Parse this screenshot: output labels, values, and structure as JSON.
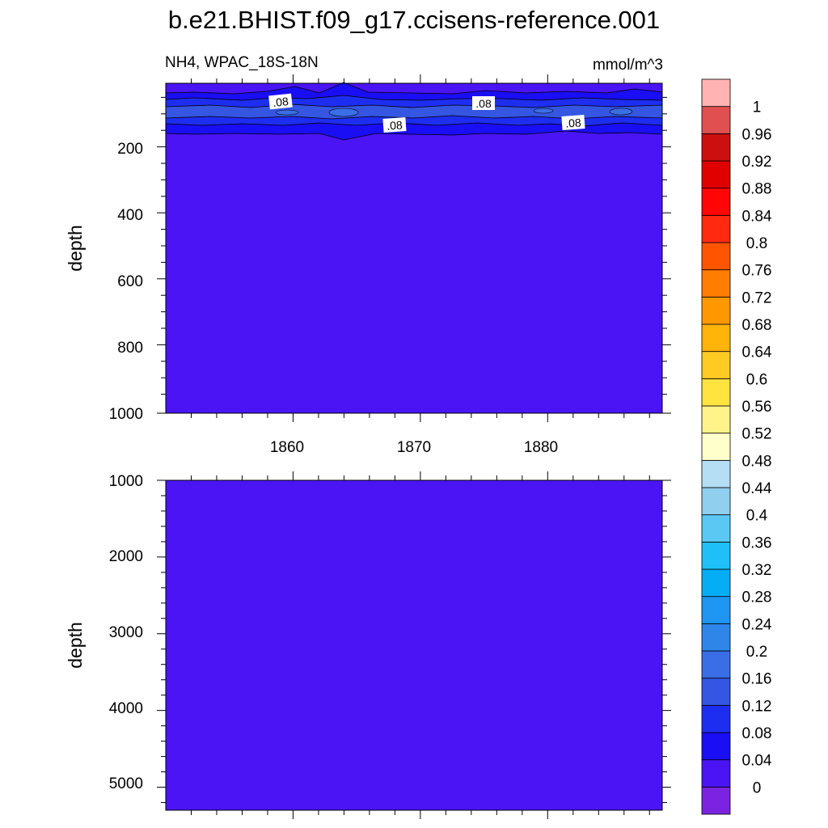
{
  "chart_data": {
    "type": "heatmap",
    "title": "b.e21.BHIST.f09_g17.ccisens-reference.001",
    "variable_label": "NH4, WPAC_18S-18N",
    "units_label": "mmol/m^3",
    "x_ticks": [
      "1860",
      "1870",
      "1880"
    ],
    "x_range": [
      1850,
      1889
    ],
    "colorbar": {
      "labels": [
        "0",
        "0.04",
        "0.08",
        "0.12",
        "0.16",
        "0.2",
        "0.24",
        "0.28",
        "0.32",
        "0.36",
        "0.4",
        "0.44",
        "0.48",
        "0.52",
        "0.56",
        "0.6",
        "0.64",
        "0.68",
        "0.72",
        "0.76",
        "0.8",
        "0.84",
        "0.88",
        "0.92",
        "0.96",
        "1"
      ],
      "colors": [
        "#7b23e0",
        "#4a14f5",
        "#1a0ef5",
        "#1e2ef0",
        "#3555e3",
        "#3a6ee6",
        "#2f86e8",
        "#1e96f2",
        "#05adf5",
        "#1ec0f7",
        "#5ac8f3",
        "#90cfee",
        "#b5def5",
        "#ffffcc",
        "#fff38a",
        "#ffe440",
        "#ffca22",
        "#ffb40a",
        "#ff9800",
        "#ff7d00",
        "#ff5500",
        "#ff2a10",
        "#ff0505",
        "#e00000",
        "#cc1010",
        "#e05050",
        "#ffb3b3"
      ]
    },
    "panels": [
      {
        "ylabel": "depth",
        "ylim": [
          0,
          1000
        ],
        "y_ticks": [
          "200",
          "400",
          "600",
          "800",
          "1000"
        ],
        "contour_labels": [
          ".08",
          ".08",
          ".08",
          ".08"
        ],
        "note": "NH4 ~0.08-0.16 mmol/m^3 in upper ~150 m, 0.04-0.08 below"
      },
      {
        "ylabel": "depth",
        "ylim": [
          1000,
          5300
        ],
        "y_ticks": [
          "1000",
          "2000",
          "3000",
          "4000",
          "5000"
        ],
        "note": "uniform 0.04-0.08 mmol/m^3"
      }
    ]
  }
}
